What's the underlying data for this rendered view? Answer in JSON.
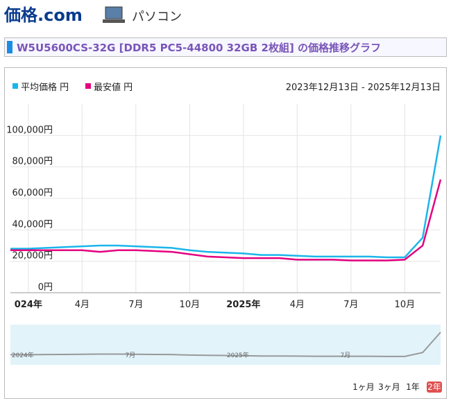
{
  "header": {
    "logo": "価格.com",
    "section": "パソコン"
  },
  "page_title": "W5U5600CS-32G [DDR5 PC5-44800 32GB 2枚組] の価格推移グラフ",
  "date_range": "2023年12月13日 - 2025年12月13日",
  "range_buttons": [
    "1ヶ月",
    "3ヶ月",
    "1年",
    "2年"
  ],
  "navigator_labels": [
    "2024年",
    "7月",
    "2025年",
    "7月"
  ],
  "chart_data": {
    "type": "line",
    "x": [
      "2023-12",
      "2024-01",
      "2024-02",
      "2024-03",
      "2024-04",
      "2024-05",
      "2024-06",
      "2024-07",
      "2024-08",
      "2024-09",
      "2024-10",
      "2024-11",
      "2024-12",
      "2025-01",
      "2025-02",
      "2025-03",
      "2025-04",
      "2025-05",
      "2025-06",
      "2025-07",
      "2025-08",
      "2025-09",
      "2025-10",
      "2025-11",
      "2025-12"
    ],
    "series": [
      {
        "name": "平均価格 円",
        "color": "#1ab5ea",
        "values": [
          28000,
          28000,
          28500,
          29000,
          29500,
          30000,
          30000,
          29500,
          29000,
          28500,
          27000,
          26000,
          25500,
          25000,
          24000,
          24000,
          23500,
          23000,
          23000,
          23000,
          23000,
          22500,
          22500,
          35000,
          100000
        ]
      },
      {
        "name": "最安値 円",
        "color": "#e4007f",
        "values": [
          27000,
          27000,
          27000,
          27000,
          27000,
          26000,
          27000,
          27000,
          26500,
          26000,
          24500,
          23000,
          22500,
          22000,
          22000,
          22000,
          21000,
          21000,
          21000,
          20500,
          20500,
          20500,
          21000,
          30000,
          72000
        ]
      }
    ],
    "ylim": [
      0,
      120000
    ],
    "yticks": [
      {
        "value": 0,
        "label": "0円"
      },
      {
        "value": 20000,
        "label": "20,000円"
      },
      {
        "value": 40000,
        "label": "40,000円"
      },
      {
        "value": 60000,
        "label": "60,000円"
      },
      {
        "value": 80000,
        "label": "80,000円"
      },
      {
        "value": 100000,
        "label": "100,000円"
      }
    ],
    "xticks": [
      {
        "value": "2024-01",
        "label": "024年"
      },
      {
        "value": "2024-04",
        "label": "4月"
      },
      {
        "value": "2024-07",
        "label": "7月"
      },
      {
        "value": "2024-10",
        "label": "10月"
      },
      {
        "value": "2025-01",
        "label": "2025年"
      },
      {
        "value": "2025-04",
        "label": "4月"
      },
      {
        "value": "2025-07",
        "label": "7月"
      },
      {
        "value": "2025-10",
        "label": "10月"
      }
    ],
    "grid": true
  }
}
